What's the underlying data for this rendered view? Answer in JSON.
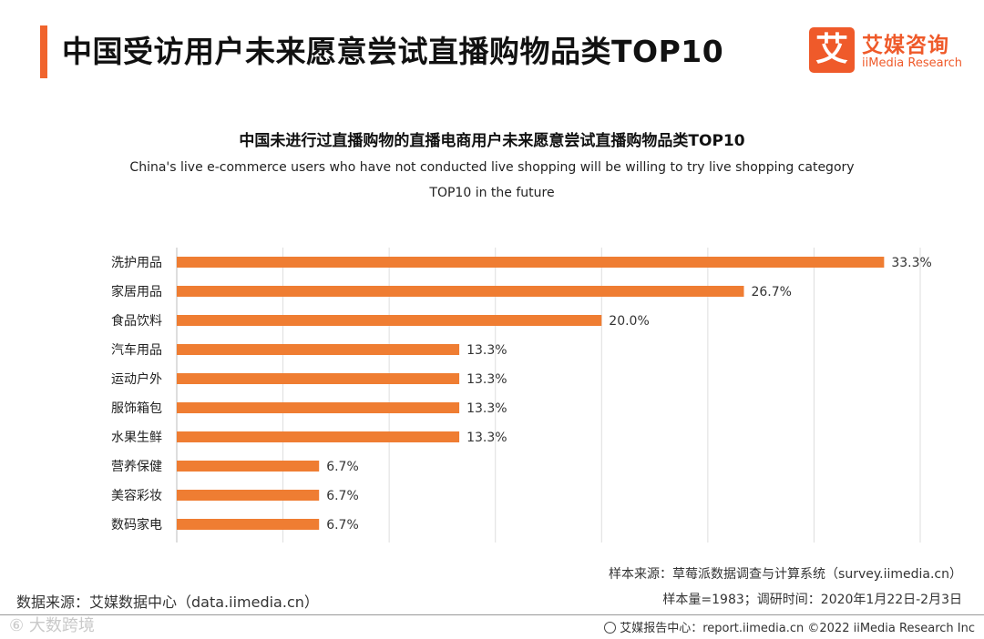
{
  "header": {
    "title": "中国受访用户未来愿意尝试直播购物品类TOP10",
    "logo_mark": "艾",
    "logo_cn": "艾媒咨询",
    "logo_en": "iiMedia Research"
  },
  "chart_data": {
    "type": "bar",
    "orientation": "horizontal",
    "title": "中国未进行过直播购物的直播电商用户未来愿意尝试直播购物品类TOP10",
    "subtitle": "China's live e-commerce users who have not conducted live shopping will be willing to try live shopping category TOP10 in the future",
    "categories": [
      "洗护用品",
      "家居用品",
      "食品饮料",
      "汽车用品",
      "运动户外",
      "服饰箱包",
      "水果生鲜",
      "营养保健",
      "美容彩妆",
      "数码家电"
    ],
    "values": [
      33.3,
      26.7,
      20.0,
      13.3,
      13.3,
      13.3,
      13.3,
      6.7,
      6.7,
      6.7
    ],
    "value_labels": [
      "33.3%",
      "26.7%",
      "20.0%",
      "13.3%",
      "13.3%",
      "13.3%",
      "13.3%",
      "6.7%",
      "6.7%",
      "6.7%"
    ],
    "xlim": [
      0,
      35
    ],
    "grid": true,
    "legend": "none",
    "bar_color": "#ef7d32"
  },
  "footer": {
    "data_source": "数据来源：艾媒数据中心（data.iimedia.cn）",
    "sample_source": "样本来源：草莓派数据调查与计算系统（survey.iimedia.cn）",
    "sample_size": "样本量=1983；调研时间：2020年1月22日-2月3日",
    "report_center": "艾媒报告中心：report.iimedia.cn ©2022 iiMedia Research Inc",
    "watermark": "⑥ 大数跨境"
  }
}
